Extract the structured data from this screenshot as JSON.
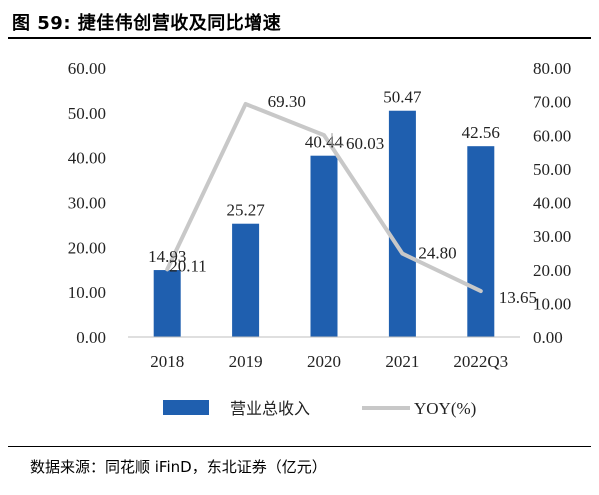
{
  "header": {
    "figure_label": "图 59:",
    "title": "捷佳伟创营收及同比增速"
  },
  "source_note": "数据来源：同花顺 iFinD，东北证券（亿元）",
  "colors": {
    "bar": "#1F5FAF",
    "line": "#C8C8C8"
  },
  "chart_data": {
    "type": "bar",
    "categories": [
      "2018",
      "2019",
      "2020",
      "2021",
      "2022Q3"
    ],
    "series": [
      {
        "name": "营业总收入",
        "type": "bar",
        "axis": "left",
        "values": [
          14.93,
          25.27,
          40.44,
          50.47,
          42.56
        ],
        "labels": [
          "14.93",
          "25.27",
          "40.44",
          "50.47",
          "42.56"
        ]
      },
      {
        "name": "YOY(%)",
        "type": "line",
        "axis": "right",
        "values": [
          20.11,
          69.3,
          60.03,
          24.8,
          13.65
        ],
        "labels": [
          "20.11",
          "69.30",
          "60.03",
          "24.80",
          "13.65"
        ]
      }
    ],
    "y_left": {
      "min": 0,
      "max": 60,
      "step": 10,
      "ticks": [
        "0.00",
        "10.00",
        "20.00",
        "30.00",
        "40.00",
        "50.00",
        "60.00"
      ]
    },
    "y_right": {
      "min": 0,
      "max": 80,
      "step": 10,
      "ticks": [
        "0.00",
        "10.00",
        "20.00",
        "30.00",
        "40.00",
        "50.00",
        "60.00",
        "70.00",
        "80.00"
      ]
    },
    "grid": false,
    "legend_position": "bottom"
  }
}
